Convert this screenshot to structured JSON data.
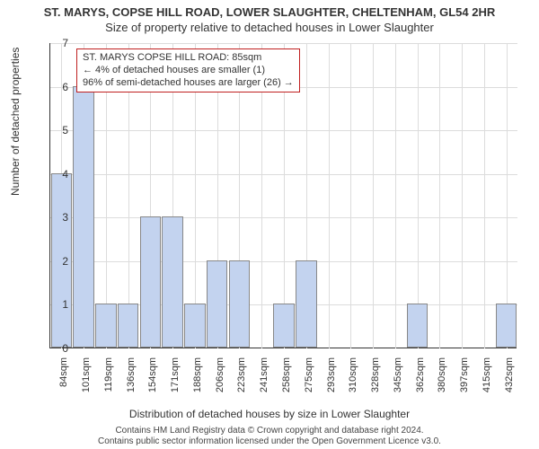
{
  "titles": {
    "line1": "ST. MARYS, COPSE HILL ROAD, LOWER SLAUGHTER, CHELTENHAM, GL54 2HR",
    "line2": "Size of property relative to detached houses in Lower Slaughter"
  },
  "chart": {
    "type": "bar",
    "ylabel": "Number of detached properties",
    "xlabel": "Distribution of detached houses by size in Lower Slaughter",
    "ylim": [
      0,
      7
    ],
    "ytick_step": 1,
    "background_color": "#ffffff",
    "grid_color": "#dcdcdc",
    "axis_color": "#333333",
    "bar_fill": "#c3d3ef",
    "bar_border": "#888888",
    "bar_width": 0.95,
    "categories": [
      "84sqm",
      "101sqm",
      "119sqm",
      "136sqm",
      "154sqm",
      "171sqm",
      "188sqm",
      "206sqm",
      "223sqm",
      "241sqm",
      "258sqm",
      "275sqm",
      "293sqm",
      "310sqm",
      "328sqm",
      "345sqm",
      "362sqm",
      "380sqm",
      "397sqm",
      "415sqm",
      "432sqm"
    ],
    "values": [
      4,
      6,
      1,
      1,
      3,
      3,
      1,
      2,
      2,
      0,
      1,
      2,
      0,
      0,
      0,
      0,
      1,
      0,
      0,
      0,
      1
    ],
    "label_fontsize": 12,
    "tick_fontsize": 11,
    "title_fontsize": 13
  },
  "info_box": {
    "border_color": "#c02020",
    "line1": "ST. MARYS COPSE HILL ROAD: 85sqm",
    "line2": "← 4% of detached houses are smaller (1)",
    "line3": "96% of semi-detached houses are larger (26) →"
  },
  "footer": {
    "line1": "Contains HM Land Registry data © Crown copyright and database right 2024.",
    "line2": "Contains public sector information licensed under the Open Government Licence v3.0."
  }
}
